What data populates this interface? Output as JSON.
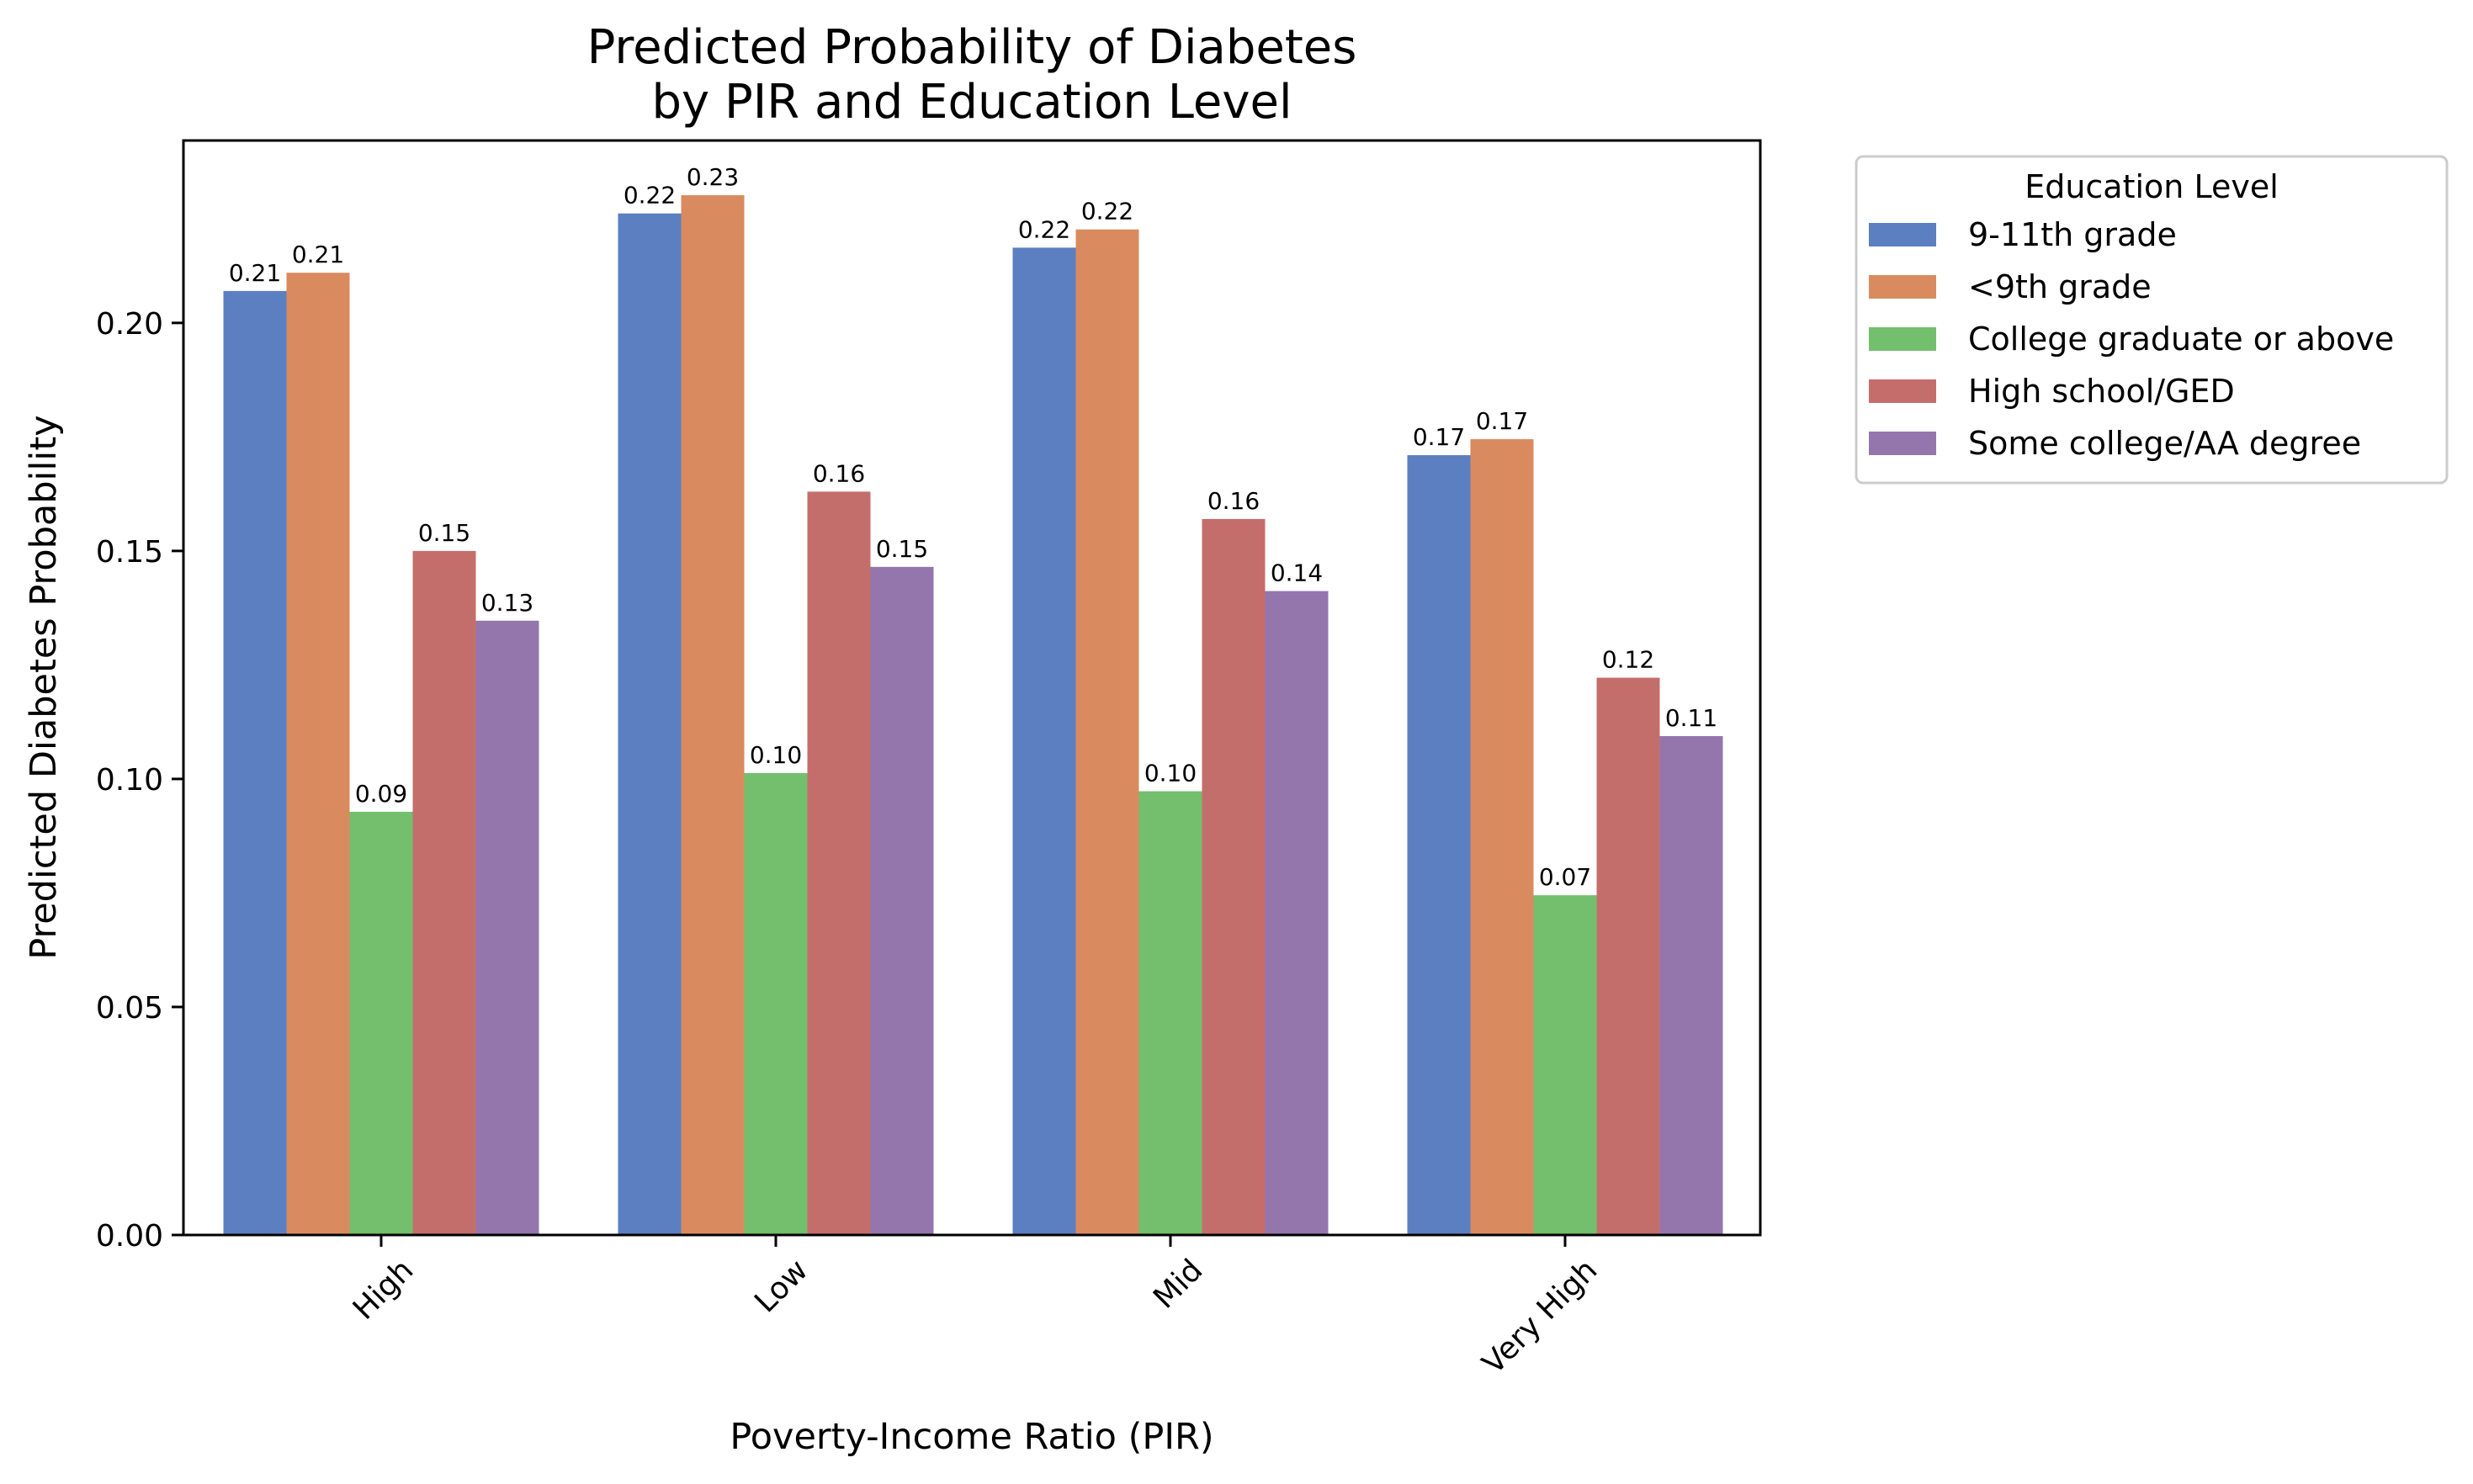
{
  "chart_data": {
    "type": "bar",
    "title_line1": "Predicted Probability of Diabetes",
    "title_line2": "by PIR and Education Level",
    "xlabel": "Poverty-Income Ratio (PIR)",
    "ylabel": "Predicted Diabetes Probability",
    "categories": [
      "High",
      "Low",
      "Mid",
      "Very High"
    ],
    "ylim": [
      0,
      0.24
    ],
    "yticks": [
      0.0,
      0.05,
      0.1,
      0.15,
      0.2
    ],
    "ytick_labels": [
      "0.00",
      "0.05",
      "0.10",
      "0.15",
      "0.20"
    ],
    "grid": false,
    "legend": {
      "title": "Education Level",
      "placement": "outside-upper-right"
    },
    "series": [
      {
        "name": "9-11th grade",
        "color": "#5b7fc1",
        "values": [
          0.207,
          0.224,
          0.2165,
          0.171
        ],
        "labels": [
          "0.21",
          "0.22",
          "0.22",
          "0.17"
        ]
      },
      {
        "name": "<9th grade",
        "color": "#d98b5f",
        "values": [
          0.211,
          0.228,
          0.2205,
          0.1745
        ],
        "labels": [
          "0.21",
          "0.23",
          "0.22",
          "0.17"
        ]
      },
      {
        "name": "College graduate or above",
        "color": "#74bf6d",
        "values": [
          0.0928,
          0.1013,
          0.0973,
          0.0745
        ],
        "labels": [
          "0.09",
          "0.10",
          "0.10",
          "0.07"
        ]
      },
      {
        "name": "High school/GED",
        "color": "#c46e6c",
        "values": [
          0.15,
          0.163,
          0.157,
          0.1222
        ],
        "labels": [
          "0.15",
          "0.16",
          "0.16",
          "0.12"
        ]
      },
      {
        "name": "Some college/AA degree",
        "color": "#9476ad",
        "values": [
          0.1347,
          0.1465,
          0.1412,
          0.1094
        ],
        "labels": [
          "0.13",
          "0.15",
          "0.14",
          "0.11"
        ]
      }
    ]
  }
}
